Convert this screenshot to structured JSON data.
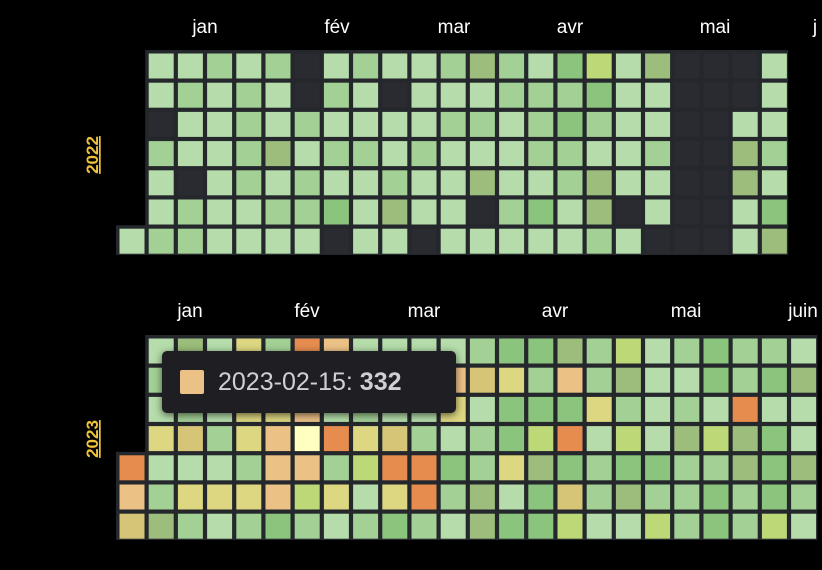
{
  "chart_data": {
    "type": "heatmap",
    "title": "",
    "tooltip": {
      "date": "2023-02-15",
      "separator": ": ",
      "value": "332",
      "color": "#ecc186"
    },
    "colors": {
      "background": "#000000",
      "empty": "#2a2a31",
      "year_label": "#f0c23b",
      "scale": {
        "0": "#2a2a31",
        "1": "#b5dcaa",
        "2": "#a3d095",
        "3": "#8bc47d",
        "4": "#9cbd7c",
        "5": "#bcd877",
        "6": "#dcd780",
        "7": "#ecc186",
        "8": "#e68c4f",
        "9": "#ffffc0",
        "10": "#d6c577"
      }
    },
    "years": [
      {
        "year": "2022",
        "months": [
          "jan",
          "fév",
          "mar",
          "avr",
          "mai",
          "j"
        ],
        "weeks": [
          [
            null,
            null,
            null,
            null,
            null,
            null,
            1
          ],
          [
            1,
            1,
            0,
            2,
            1,
            1,
            2
          ],
          [
            1,
            2,
            1,
            1,
            0,
            2,
            2
          ],
          [
            2,
            1,
            1,
            1,
            1,
            1,
            1
          ],
          [
            1,
            2,
            2,
            2,
            2,
            1,
            1
          ],
          [
            2,
            1,
            1,
            4,
            1,
            2,
            1
          ],
          [
            0,
            0,
            2,
            1,
            2,
            2,
            1
          ],
          [
            1,
            2,
            1,
            2,
            1,
            3,
            0
          ],
          [
            2,
            1,
            1,
            2,
            1,
            1,
            1
          ],
          [
            1,
            0,
            1,
            1,
            2,
            4,
            1
          ],
          [
            1,
            1,
            1,
            2,
            1,
            1,
            0
          ],
          [
            2,
            1,
            2,
            1,
            1,
            1,
            1
          ],
          [
            4,
            1,
            2,
            1,
            4,
            0,
            1
          ],
          [
            2,
            2,
            1,
            1,
            1,
            2,
            1
          ],
          [
            1,
            2,
            2,
            2,
            1,
            3,
            1
          ],
          [
            3,
            2,
            3,
            2,
            2,
            1,
            1
          ],
          [
            5,
            3,
            2,
            1,
            4,
            4,
            2
          ],
          [
            1,
            1,
            1,
            1,
            1,
            0,
            1
          ],
          [
            4,
            1,
            1,
            2,
            1,
            1,
            0
          ],
          [
            0,
            0,
            0,
            0,
            0,
            0,
            0
          ],
          [
            0,
            0,
            0,
            0,
            0,
            0,
            0
          ],
          [
            0,
            0,
            1,
            4,
            4,
            1,
            1
          ],
          [
            1,
            1,
            1,
            2,
            1,
            3,
            4
          ]
        ]
      },
      {
        "year": "2023",
        "months": [
          "jan",
          "fév",
          "mar",
          "avr",
          "mai",
          "juin"
        ],
        "weeks": [
          [
            null,
            null,
            null,
            null,
            8,
            7,
            10
          ],
          [
            1,
            2,
            1,
            6,
            1,
            2,
            4
          ],
          [
            4,
            2,
            2,
            10,
            1,
            6,
            2
          ],
          [
            1,
            6,
            1,
            2,
            1,
            6,
            1
          ],
          [
            6,
            1,
            6,
            6,
            2,
            6,
            2
          ],
          [
            2,
            1,
            6,
            7,
            7,
            7,
            3
          ],
          [
            8,
            2,
            7,
            9,
            7,
            5,
            2
          ],
          [
            7,
            1,
            1,
            8,
            2,
            6,
            1
          ],
          [
            1,
            2,
            2,
            6,
            5,
            1,
            2
          ],
          [
            1,
            2,
            1,
            10,
            8,
            6,
            3
          ],
          [
            1,
            1,
            1,
            2,
            8,
            8,
            2
          ],
          [
            1,
            7,
            6,
            1,
            3,
            2,
            1
          ],
          [
            2,
            10,
            1,
            2,
            2,
            4,
            4
          ],
          [
            3,
            6,
            3,
            3,
            6,
            1,
            3
          ],
          [
            3,
            2,
            3,
            5,
            4,
            3,
            3
          ],
          [
            4,
            7,
            3,
            8,
            3,
            10,
            5
          ],
          [
            2,
            2,
            6,
            1,
            2,
            2,
            1
          ],
          [
            5,
            4,
            2,
            5,
            3,
            4,
            1
          ],
          [
            1,
            1,
            1,
            1,
            3,
            2,
            5
          ],
          [
            2,
            1,
            2,
            4,
            2,
            2,
            2
          ],
          [
            3,
            3,
            1,
            5,
            2,
            3,
            3
          ],
          [
            2,
            2,
            8,
            4,
            4,
            2,
            2
          ],
          [
            2,
            3,
            1,
            3,
            3,
            3,
            5
          ],
          [
            1,
            4,
            1,
            1,
            4,
            2,
            1
          ]
        ]
      }
    ]
  }
}
